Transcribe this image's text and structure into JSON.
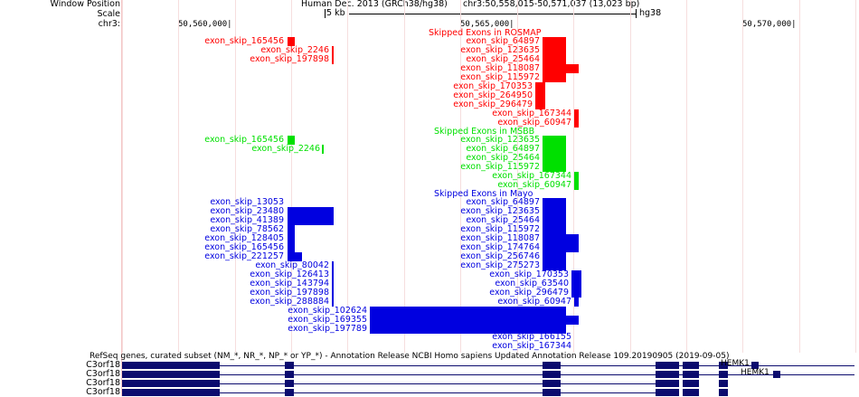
{
  "sidebar": {
    "window_position_label": "Window Position",
    "scale_label": "Scale",
    "chrom_label": "chr3:",
    "gene_labels": [
      "C3orf18",
      "C3orf18",
      "C3orf18",
      "C3orf18"
    ]
  },
  "header": {
    "assembly": "Human Dec. 2013 (GRCh38/hg38)",
    "position": "chr3:50,558,015-50,571,037 (13,023 bp)",
    "scale_text": "5 kb",
    "scale_db": "hg38",
    "ticks": [
      "50,560,000|",
      "50,565,000|",
      "50,570,000|"
    ]
  },
  "colors": {
    "rosmap": "#ff0000",
    "msbb": "#00e000",
    "mayo": "#0000e0",
    "gene": "#0b0b6e",
    "grid": "#f6dede"
  },
  "tracks": {
    "rosmap": {
      "title": "Skipped Exons in ROSMAP",
      "features": [
        {
          "name": "exon_skip_165456"
        },
        {
          "name": "exon_skip_2246"
        },
        {
          "name": "exon_skip_197898"
        },
        {
          "name": "exon_skip_64897"
        },
        {
          "name": "exon_skip_123635"
        },
        {
          "name": "exon_skip_25464"
        },
        {
          "name": "exon_skip_118087"
        },
        {
          "name": "exon_skip_115972"
        },
        {
          "name": "exon_skip_170353"
        },
        {
          "name": "exon_skip_264950"
        },
        {
          "name": "exon_skip_296479"
        },
        {
          "name": "exon_skip_167344"
        },
        {
          "name": "exon_skip_60947"
        }
      ]
    },
    "msbb": {
      "title": "Skipped Exons in MSBB",
      "features": [
        {
          "name": "exon_skip_165456"
        },
        {
          "name": "exon_skip_2246"
        },
        {
          "name": "exon_skip_123635"
        },
        {
          "name": "exon_skip_64897"
        },
        {
          "name": "exon_skip_25464"
        },
        {
          "name": "exon_skip_115972"
        },
        {
          "name": "exon_skip_167344"
        },
        {
          "name": "exon_skip_60947"
        }
      ]
    },
    "mayo": {
      "title": "Skipped Exons in Mayo",
      "features": [
        {
          "name": "exon_skip_13053"
        },
        {
          "name": "exon_skip_23480"
        },
        {
          "name": "exon_skip_41389"
        },
        {
          "name": "exon_skip_78562"
        },
        {
          "name": "exon_skip_128405"
        },
        {
          "name": "exon_skip_165456"
        },
        {
          "name": "exon_skip_221257"
        },
        {
          "name": "exon_skip_80042"
        },
        {
          "name": "exon_skip_126413"
        },
        {
          "name": "exon_skip_143794"
        },
        {
          "name": "exon_skip_197898"
        },
        {
          "name": "exon_skip_288884"
        },
        {
          "name": "exon_skip_102624"
        },
        {
          "name": "exon_skip_169355"
        },
        {
          "name": "exon_skip_197789"
        },
        {
          "name": "exon_skip_64897"
        },
        {
          "name": "exon_skip_123635"
        },
        {
          "name": "exon_skip_25464"
        },
        {
          "name": "exon_skip_115972"
        },
        {
          "name": "exon_skip_118087"
        },
        {
          "name": "exon_skip_174764"
        },
        {
          "name": "exon_skip_256746"
        },
        {
          "name": "exon_skip_275273"
        },
        {
          "name": "exon_skip_170353"
        },
        {
          "name": "exon_skip_63540"
        },
        {
          "name": "exon_skip_296479"
        },
        {
          "name": "exon_skip_60947"
        },
        {
          "name": "exon_skip_166155"
        },
        {
          "name": "exon_skip_167344"
        }
      ]
    },
    "refseq": {
      "title": "RefSeq genes, curated subset (NM_*, NR_*, NP_* or YP_*) - Annotation Release NCBI Homo sapiens Updated Annotation Release 109.20190905 (2019-09-05)",
      "right_genes": [
        "HEMK1",
        "HEMK1"
      ]
    }
  }
}
